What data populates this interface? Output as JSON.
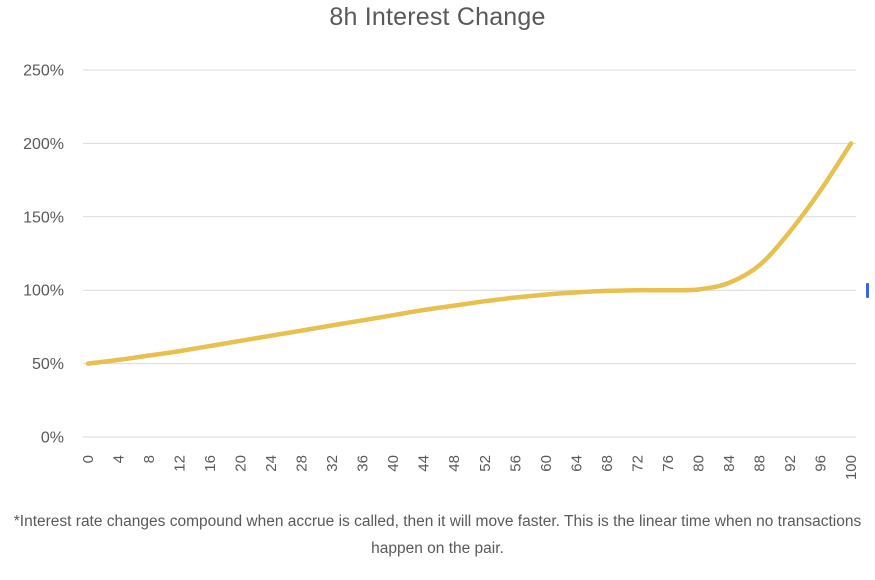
{
  "title": "8h Interest Change",
  "footnote": "*Interest rate changes compound when accrue is called, then it will move faster. This is the linear time when no transactions happen on the pair.",
  "colors": {
    "title_text": "#595959",
    "axis_text": "#595959",
    "gridline": "#d9d9d9",
    "line": "#e8c04f",
    "footnote_text": "#595959",
    "background": "#ffffff",
    "cursor_mark": "#3b63e8"
  },
  "artifacts": {
    "cursor_mark": "small blue text-cursor bar at right edge near 100% gridline"
  },
  "chart_data": {
    "type": "line",
    "title": "8h Interest Change",
    "xlabel": "",
    "ylabel": "",
    "xlim": [
      0,
      100
    ],
    "ylim": [
      0,
      250
    ],
    "grid": true,
    "legend_position": "none",
    "x": [
      0,
      4,
      8,
      12,
      16,
      20,
      24,
      28,
      32,
      36,
      40,
      44,
      48,
      52,
      56,
      60,
      64,
      68,
      72,
      76,
      80,
      84,
      88,
      92,
      96,
      100
    ],
    "series": [
      {
        "name": "8h Interest Change",
        "color": "#e8c04f",
        "values": [
          50,
          52.5,
          55.5,
          58.5,
          62,
          65.5,
          69,
          72.5,
          76,
          79.5,
          83,
          86.5,
          89.5,
          92.5,
          95,
          97,
          98.5,
          99.5,
          100,
          100,
          100.5,
          105,
          117,
          140,
          168,
          200
        ]
      }
    ],
    "y_tick_values": [
      0,
      50,
      100,
      150,
      200,
      250
    ],
    "y_tick_labels": [
      "0%",
      "50%",
      "100%",
      "150%",
      "200%",
      "250%"
    ],
    "x_tick_labels": [
      "0",
      "4",
      "8",
      "12",
      "16",
      "20",
      "24",
      "28",
      "32",
      "36",
      "40",
      "44",
      "48",
      "52",
      "56",
      "60",
      "64",
      "68",
      "72",
      "76",
      "80",
      "84",
      "88",
      "92",
      "96",
      "100"
    ],
    "x_tick_rotation": -90
  }
}
